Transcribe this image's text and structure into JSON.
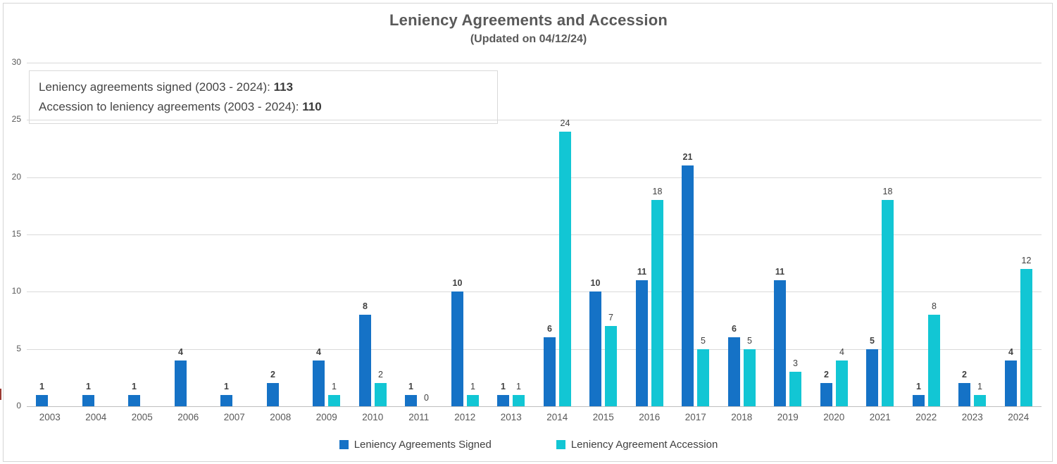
{
  "title": "Leniency Agreements and Accession",
  "subtitle": "(Updated on 04/12/24)",
  "info_box": {
    "line1_label": "Leniency agreements signed (2003 - 2024): ",
    "line1_value": "113",
    "line2_label": "Accession to leniency agreements (2003 - 2024): ",
    "line2_value": "110"
  },
  "colors": {
    "signed_blue": "#1572c6",
    "accession_cyan": "#12c6d4",
    "gridline": "#d9d9d9",
    "axis_line": "#bfbfbf",
    "text_gray": "#595959",
    "data_label": "#404040"
  },
  "chart_data": {
    "type": "bar",
    "categories": [
      "2003",
      "2004",
      "2005",
      "2006",
      "2007",
      "2008",
      "2009",
      "2010",
      "2011",
      "2012",
      "2013",
      "2014",
      "2015",
      "2016",
      "2017",
      "2018",
      "2019",
      "2020",
      "2021",
      "2022",
      "2023",
      "2024"
    ],
    "series": [
      {
        "name": "Leniency Agreements Signed",
        "color": "#1572c6",
        "values": [
          1,
          1,
          1,
          4,
          1,
          2,
          4,
          8,
          1,
          10,
          1,
          6,
          10,
          11,
          21,
          6,
          11,
          2,
          5,
          1,
          2,
          4
        ]
      },
      {
        "name": "Leniency Agreement Accession",
        "color": "#12c6d4",
        "values": [
          null,
          null,
          null,
          null,
          null,
          null,
          1,
          2,
          0,
          1,
          1,
          24,
          7,
          18,
          5,
          5,
          3,
          4,
          18,
          8,
          1,
          12
        ]
      }
    ],
    "title": "Leniency Agreements and Accession",
    "subtitle": "(Updated on 04/12/24)",
    "xlabel": "",
    "ylabel": "",
    "ylim": [
      0,
      30
    ],
    "yticks": [
      0,
      5,
      10,
      15,
      20,
      25,
      30
    ],
    "grid": true,
    "legend_position": "bottom",
    "data_labels": true
  },
  "legend": {
    "items": [
      {
        "label": "Leniency Agreements Signed",
        "color": "#1572c6"
      },
      {
        "label": "Leniency Agreement Accession",
        "color": "#12c6d4"
      }
    ]
  }
}
